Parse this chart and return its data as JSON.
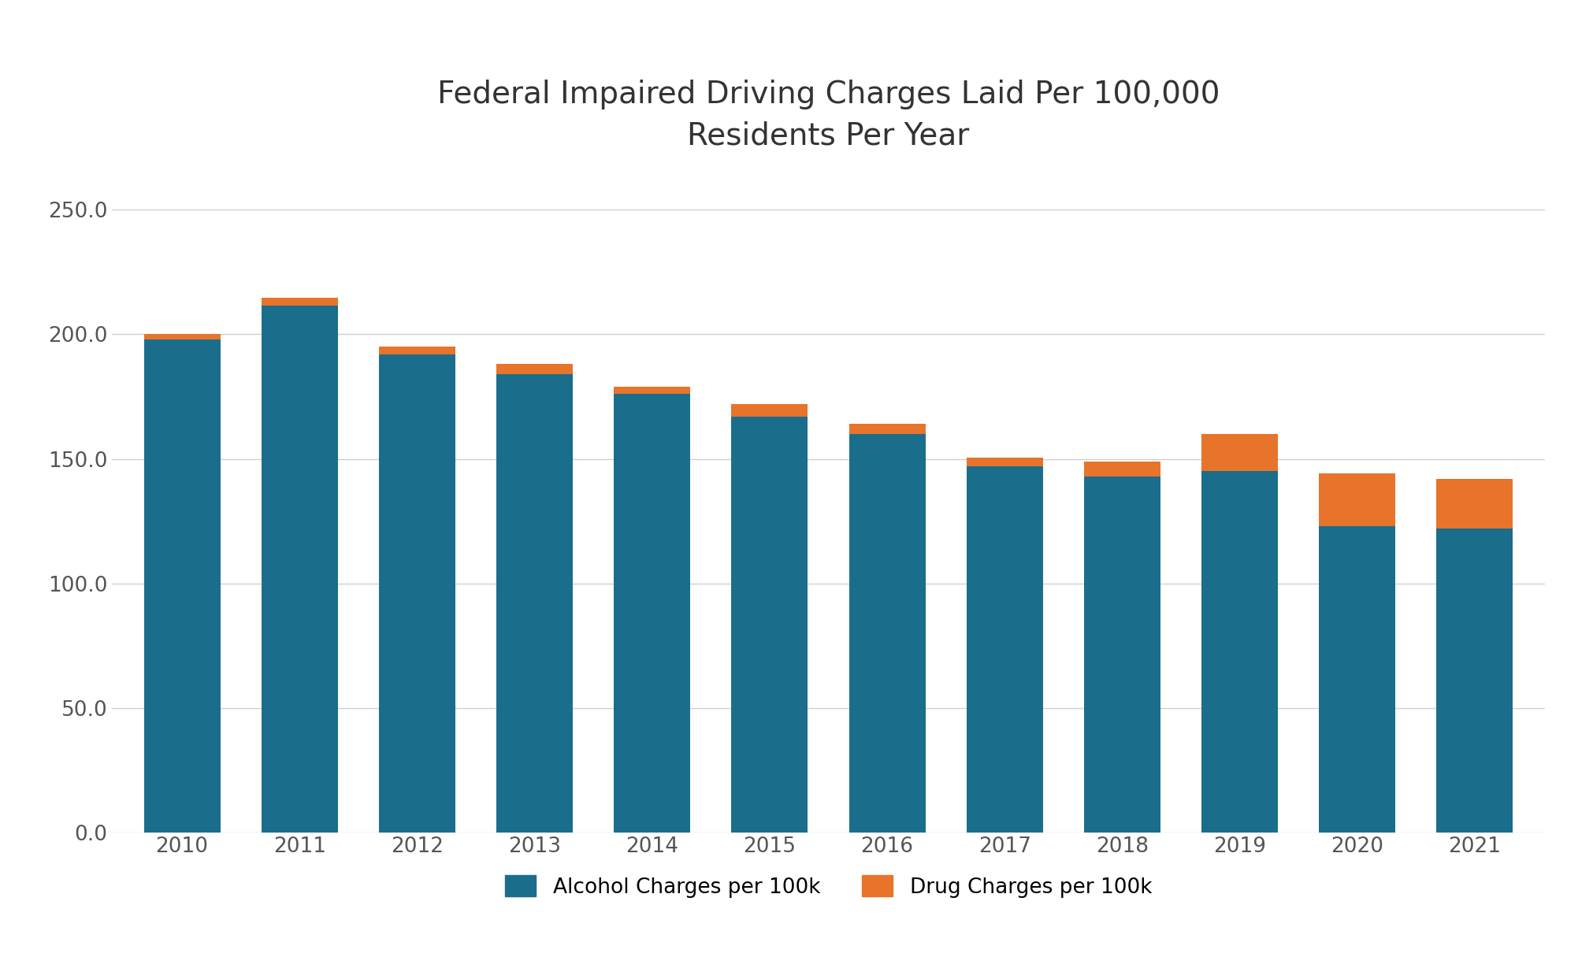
{
  "years": [
    "2010",
    "2011",
    "2012",
    "2013",
    "2014",
    "2015",
    "2016",
    "2017",
    "2018",
    "2019",
    "2020",
    "2021"
  ],
  "alcohol_values": [
    198.0,
    211.5,
    192.0,
    184.0,
    176.0,
    167.0,
    160.0,
    147.0,
    143.0,
    145.0,
    123.0,
    122.0
  ],
  "drug_values": [
    2.0,
    3.0,
    3.0,
    4.0,
    3.0,
    5.0,
    4.0,
    3.5,
    6.0,
    15.0,
    21.0,
    20.0
  ],
  "alcohol_color": "#1a6e8c",
  "drug_color": "#e8732a",
  "title_line1": "Federal Impaired Driving Charges Laid Per 100,000",
  "title_line2": "Residents Per Year",
  "legend_alcohol": "Alcohol Charges per 100k",
  "legend_drug": "Drug Charges per 100k",
  "ylim": [
    0,
    265
  ],
  "yticks": [
    0.0,
    50.0,
    100.0,
    150.0,
    200.0,
    250.0
  ],
  "background_color": "#ffffff",
  "grid_color": "#d0d0d0",
  "bar_width": 0.65,
  "title_fontsize": 28,
  "tick_fontsize": 19
}
